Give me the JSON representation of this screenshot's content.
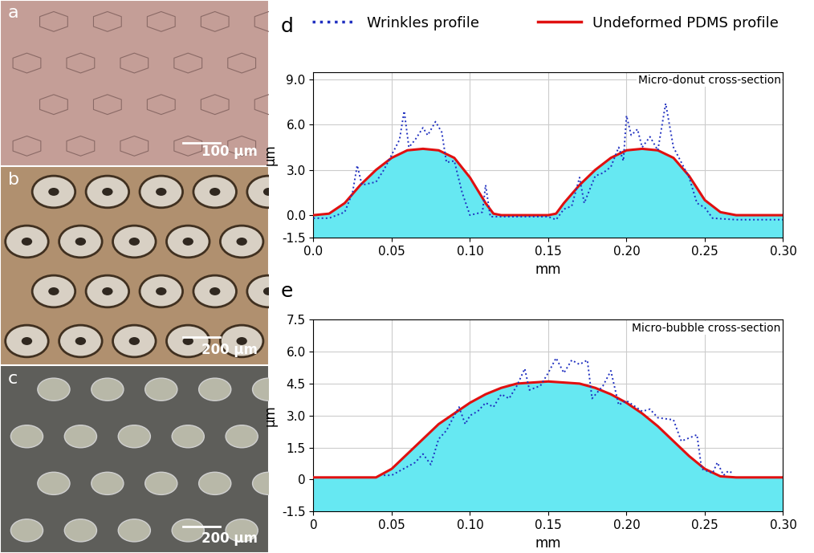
{
  "images": [
    {
      "label": "a",
      "scale_bar": "100 µm",
      "color": "#c49e97"
    },
    {
      "label": "b",
      "scale_bar": "200 µm",
      "color": "#b0906f"
    },
    {
      "label": "c",
      "scale_bar": "200 µm",
      "color": "#5e5e5a"
    }
  ],
  "chart_data": [
    {
      "type": "line",
      "panel": "d",
      "title": "Micro-donut cross-section",
      "x_label": "mm",
      "y_label": "µm",
      "grid": true,
      "legend": "upper center",
      "xlim": [
        0.0,
        0.3
      ],
      "xticks": [
        {
          "value": 0.0,
          "label": "0.0"
        },
        {
          "value": 0.05,
          "label": "0.05"
        },
        {
          "value": 0.1,
          "label": "0.10"
        },
        {
          "value": 0.15,
          "label": "0.15"
        },
        {
          "value": 0.2,
          "label": "0.20"
        },
        {
          "value": 0.25,
          "label": "0.25"
        },
        {
          "value": 0.3,
          "label": "0.30"
        }
      ],
      "ylim": [
        -1.5,
        9.5
      ],
      "yticks": [
        {
          "value": -1.5,
          "label": "-1.5"
        },
        {
          "value": 0.0,
          "label": "0.0"
        },
        {
          "value": 3.0,
          "label": "3.0"
        },
        {
          "value": 6.0,
          "label": "6.0"
        },
        {
          "value": 9.0,
          "label": "9.0"
        }
      ],
      "series": [
        {
          "name": "Wrinkles profile",
          "color": "#2030c0",
          "line_style": "dotted",
          "type": "line",
          "x": [
            0.0,
            0.01,
            0.02,
            0.025,
            0.028,
            0.031,
            0.04,
            0.045,
            0.05,
            0.055,
            0.058,
            0.061,
            0.065,
            0.07,
            0.073,
            0.078,
            0.082,
            0.085,
            0.09,
            0.095,
            0.1,
            0.108,
            0.11,
            0.113,
            0.15,
            0.155,
            0.16,
            0.165,
            0.17,
            0.173,
            0.18,
            0.185,
            0.19,
            0.195,
            0.198,
            0.2,
            0.203,
            0.207,
            0.21,
            0.215,
            0.22,
            0.225,
            0.23,
            0.235,
            0.24,
            0.245,
            0.25,
            0.255,
            0.27,
            0.3
          ],
          "values": [
            -0.2,
            -0.2,
            0.2,
            1.5,
            3.3,
            2.0,
            2.2,
            3.0,
            4.0,
            5.0,
            6.9,
            4.5,
            5.0,
            5.8,
            5.3,
            6.2,
            5.5,
            3.5,
            3.6,
            1.5,
            0.0,
            0.2,
            2.0,
            -0.1,
            -0.1,
            -0.3,
            0.4,
            0.6,
            2.5,
            0.8,
            2.6,
            2.8,
            3.2,
            4.5,
            3.6,
            6.6,
            5.3,
            5.7,
            4.5,
            5.2,
            4.3,
            7.4,
            4.5,
            3.5,
            2.5,
            0.8,
            0.5,
            -0.2,
            -0.3,
            -0.3
          ]
        },
        {
          "name": "Undeformed PDMS profile",
          "color": "#e01010",
          "line_style": "solid",
          "type": "area",
          "x": [
            0.0,
            0.01,
            0.02,
            0.03,
            0.04,
            0.05,
            0.06,
            0.07,
            0.08,
            0.09,
            0.1,
            0.11,
            0.115,
            0.12,
            0.15,
            0.155,
            0.16,
            0.17,
            0.18,
            0.19,
            0.2,
            0.21,
            0.22,
            0.23,
            0.24,
            0.25,
            0.26,
            0.27,
            0.3
          ],
          "values": [
            0.0,
            0.1,
            0.8,
            2.0,
            3.0,
            3.8,
            4.3,
            4.4,
            4.3,
            3.8,
            2.5,
            0.8,
            0.1,
            0.0,
            0.0,
            0.1,
            0.8,
            2.0,
            3.0,
            3.8,
            4.3,
            4.4,
            4.3,
            3.8,
            2.6,
            1.0,
            0.2,
            0.0,
            0.0
          ]
        }
      ]
    },
    {
      "type": "line",
      "panel": "e",
      "title": "Micro-bubble cross-section",
      "x_label": "mm",
      "y_label": "µm",
      "grid": true,
      "xlim": [
        0,
        0.3
      ],
      "xticks": [
        0,
        {
          "value": 0.05,
          "label": "0.05"
        },
        {
          "value": 0.1,
          "label": "0.10"
        },
        {
          "value": 0.15,
          "label": "0.15"
        },
        {
          "value": 0.2,
          "label": "0.20"
        },
        {
          "value": 0.25,
          "label": "0.25"
        },
        {
          "value": 0.3,
          "label": "0.30"
        }
      ],
      "ylim": [
        -1.5,
        7.5
      ],
      "yticks": [
        {
          "value": -1.5,
          "label": "-1.5"
        },
        0,
        1.5,
        {
          "value": 3.0,
          "label": "3.0"
        },
        4.5,
        {
          "value": 6.0,
          "label": "6.0"
        },
        7.5
      ],
      "series": [
        {
          "color": "#2030c0",
          "line_style": "dotted",
          "type": "line",
          "x": [
            0.045,
            0.05,
            0.06,
            0.065,
            0.07,
            0.075,
            0.08,
            0.085,
            0.09,
            0.093,
            0.097,
            0.1,
            0.105,
            0.11,
            0.115,
            0.12,
            0.125,
            0.13,
            0.135,
            0.138,
            0.145,
            0.15,
            0.155,
            0.16,
            0.165,
            0.17,
            0.175,
            0.178,
            0.185,
            0.19,
            0.195,
            0.2,
            0.21,
            0.215,
            0.22,
            0.23,
            0.235,
            0.245,
            0.248,
            0.255,
            0.258,
            0.262,
            0.265,
            0.268
          ],
          "values": [
            0.2,
            0.2,
            0.6,
            0.8,
            1.2,
            0.7,
            1.9,
            2.3,
            3.0,
            3.4,
            2.6,
            3.0,
            3.2,
            3.6,
            3.4,
            4.0,
            3.8,
            4.4,
            5.2,
            4.2,
            4.4,
            5.0,
            5.7,
            5.0,
            5.6,
            5.4,
            5.6,
            3.8,
            4.4,
            5.1,
            3.5,
            3.7,
            3.2,
            3.3,
            2.9,
            2.8,
            1.8,
            2.1,
            0.5,
            0.3,
            0.8,
            0.2,
            0.4,
            0.3
          ]
        },
        {
          "color": "#e01010",
          "line_style": "solid",
          "type": "area",
          "x": [
            0.0,
            0.04,
            0.05,
            0.06,
            0.07,
            0.08,
            0.09,
            0.1,
            0.11,
            0.12,
            0.13,
            0.15,
            0.17,
            0.18,
            0.19,
            0.2,
            0.21,
            0.22,
            0.23,
            0.24,
            0.25,
            0.26,
            0.27,
            0.3
          ],
          "values": [
            0.1,
            0.1,
            0.5,
            1.2,
            1.9,
            2.6,
            3.1,
            3.6,
            4.0,
            4.3,
            4.5,
            4.6,
            4.5,
            4.3,
            4.0,
            3.6,
            3.1,
            2.5,
            1.8,
            1.1,
            0.5,
            0.15,
            0.1,
            0.1
          ]
        }
      ]
    }
  ]
}
